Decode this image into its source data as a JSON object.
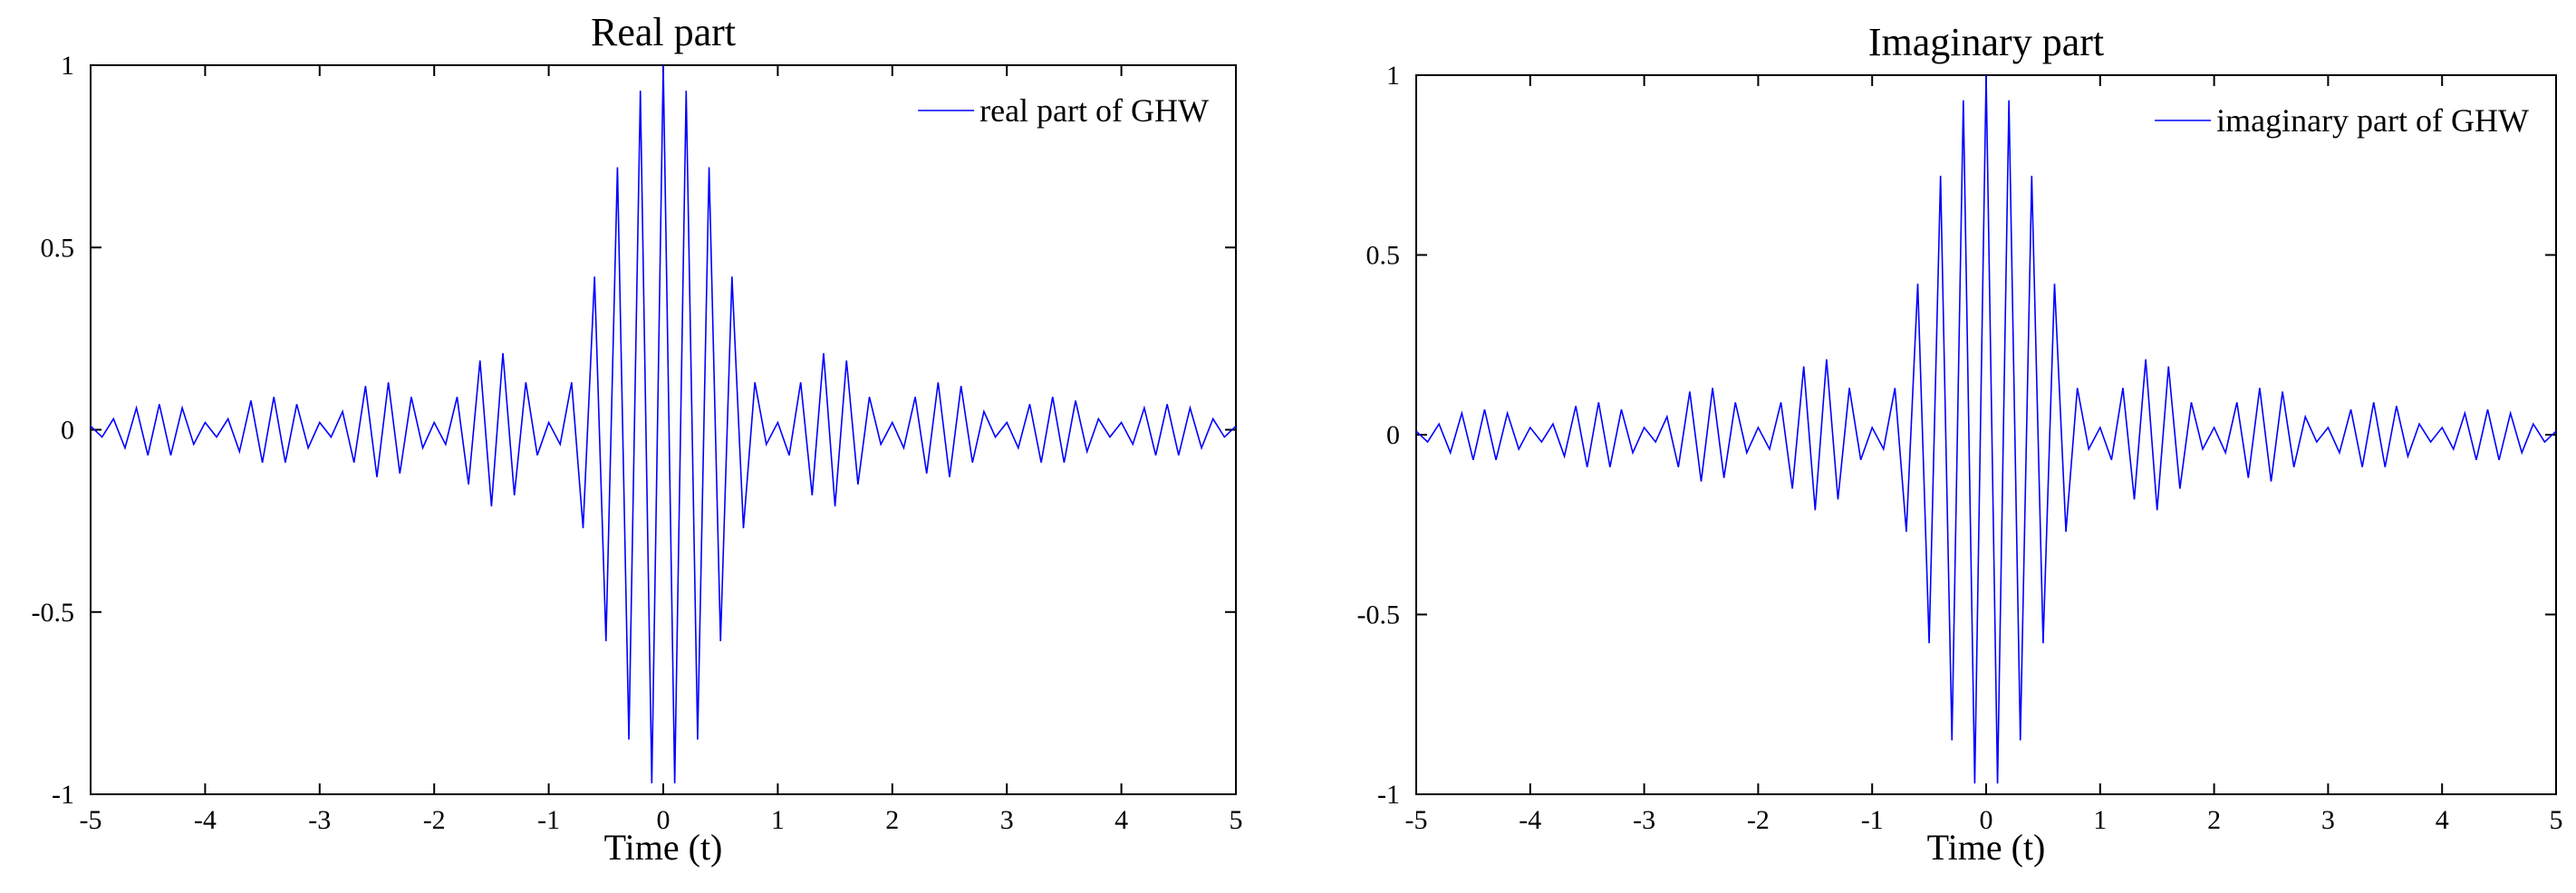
{
  "chart_data": [
    {
      "type": "line",
      "title": "Real part",
      "xlabel": "Time (t)",
      "x": [
        -5,
        -4.9,
        -4.8,
        -4.7,
        -4.6,
        -4.5,
        -4.4,
        -4.3,
        -4.2,
        -4.1,
        -4,
        -3.9,
        -3.8,
        -3.7,
        -3.6,
        -3.5,
        -3.4,
        -3.3,
        -3.2,
        -3.1,
        -3,
        -2.9,
        -2.8,
        -2.7,
        -2.6,
        -2.5,
        -2.4,
        -2.3,
        -2.2,
        -2.1,
        -2,
        -1.9,
        -1.8,
        -1.7,
        -1.6,
        -1.5,
        -1.4,
        -1.3,
        -1.2,
        -1.1,
        -1,
        -0.9,
        -0.8,
        -0.7,
        -0.6,
        -0.5,
        -0.4,
        -0.3,
        -0.2,
        -0.1,
        0,
        0.1,
        0.2,
        0.3,
        0.4,
        0.5,
        0.6,
        0.7,
        0.8,
        0.9,
        1,
        1.1,
        1.2,
        1.3,
        1.4,
        1.5,
        1.6,
        1.7,
        1.8,
        1.9,
        2,
        2.1,
        2.2,
        2.3,
        2.4,
        2.5,
        2.6,
        2.7,
        2.8,
        2.9,
        3,
        3.1,
        3.2,
        3.3,
        3.4,
        3.5,
        3.6,
        3.7,
        3.8,
        3.9,
        4,
        4.1,
        4.2,
        4.3,
        4.4,
        4.5,
        4.6,
        4.7,
        4.8,
        4.9,
        5
      ],
      "series": [
        {
          "name": "real part of GHW",
          "color": "#0000ff",
          "values": [
            0.01,
            -0.02,
            0.03,
            -0.05,
            0.06,
            -0.07,
            0.07,
            -0.07,
            0.06,
            -0.04,
            0.02,
            -0.02,
            0.03,
            -0.06,
            0.08,
            -0.09,
            0.09,
            -0.09,
            0.07,
            -0.05,
            0.02,
            -0.02,
            0.05,
            -0.09,
            0.12,
            -0.13,
            0.13,
            -0.12,
            0.09,
            -0.05,
            0.02,
            -0.04,
            0.09,
            -0.15,
            0.19,
            -0.21,
            0.21,
            -0.18,
            0.13,
            -0.07,
            0.02,
            -0.04,
            0.13,
            -0.27,
            0.42,
            -0.58,
            0.72,
            -0.85,
            0.93,
            -0.97,
            1.0,
            -0.97,
            0.93,
            -0.85,
            0.72,
            -0.58,
            0.42,
            -0.27,
            0.13,
            -0.04,
            0.02,
            -0.07,
            0.13,
            -0.18,
            0.21,
            -0.21,
            0.19,
            -0.15,
            0.09,
            -0.04,
            0.02,
            -0.05,
            0.09,
            -0.12,
            0.13,
            -0.13,
            0.12,
            -0.09,
            0.05,
            -0.02,
            0.02,
            -0.05,
            0.07,
            -0.09,
            0.09,
            -0.09,
            0.08,
            -0.06,
            0.03,
            -0.02,
            0.02,
            -0.04,
            0.06,
            -0.07,
            0.07,
            -0.07,
            0.06,
            -0.05,
            0.03,
            -0.02,
            0.01
          ]
        }
      ],
      "xlim": [
        -5,
        5
      ],
      "xticks": [
        -5,
        -4,
        -3,
        -2,
        -1,
        0,
        1,
        2,
        3,
        4,
        5
      ],
      "ylim": [
        -1,
        1
      ],
      "yticks": [
        -1,
        -0.5,
        0,
        0.5,
        1
      ],
      "legend": "upper right"
    },
    {
      "type": "line",
      "title": "Imaginary part",
      "xlabel": "Time (t)",
      "x": [
        -5,
        -4.9,
        -4.8,
        -4.7,
        -4.6,
        -4.5,
        -4.4,
        -4.3,
        -4.2,
        -4.1,
        -4,
        -3.9,
        -3.8,
        -3.7,
        -3.6,
        -3.5,
        -3.4,
        -3.3,
        -3.2,
        -3.1,
        -3,
        -2.9,
        -2.8,
        -2.7,
        -2.6,
        -2.5,
        -2.4,
        -2.3,
        -2.2,
        -2.1,
        -2,
        -1.9,
        -1.8,
        -1.7,
        -1.6,
        -1.5,
        -1.4,
        -1.3,
        -1.2,
        -1.1,
        -1,
        -0.9,
        -0.8,
        -0.7,
        -0.6,
        -0.5,
        -0.4,
        -0.3,
        -0.2,
        -0.1,
        0,
        0.1,
        0.2,
        0.3,
        0.4,
        0.5,
        0.6,
        0.7,
        0.8,
        0.9,
        1,
        1.1,
        1.2,
        1.3,
        1.4,
        1.5,
        1.6,
        1.7,
        1.8,
        1.9,
        2,
        2.1,
        2.2,
        2.3,
        2.4,
        2.5,
        2.6,
        2.7,
        2.8,
        2.9,
        3,
        3.1,
        3.2,
        3.3,
        3.4,
        3.5,
        3.6,
        3.7,
        3.8,
        3.9,
        4,
        4.1,
        4.2,
        4.3,
        4.4,
        4.5,
        4.6,
        4.7,
        4.8,
        4.9,
        5
      ],
      "series": [
        {
          "name": "imaginary part of GHW",
          "color": "#0000ff",
          "values": [
            0.01,
            -0.02,
            0.03,
            -0.05,
            0.06,
            -0.07,
            0.07,
            -0.07,
            0.06,
            -0.04,
            0.02,
            -0.02,
            0.03,
            -0.06,
            0.08,
            -0.09,
            0.09,
            -0.09,
            0.07,
            -0.05,
            0.02,
            -0.02,
            0.05,
            -0.09,
            0.12,
            -0.13,
            0.13,
            -0.12,
            0.09,
            -0.05,
            0.02,
            -0.04,
            0.09,
            -0.15,
            0.19,
            -0.21,
            0.21,
            -0.18,
            0.13,
            -0.07,
            0.02,
            -0.04,
            0.13,
            -0.27,
            0.42,
            -0.58,
            0.72,
            -0.85,
            0.93,
            -0.97,
            1.0,
            -0.97,
            0.93,
            -0.85,
            0.72,
            -0.58,
            0.42,
            -0.27,
            0.13,
            -0.04,
            0.02,
            -0.07,
            0.13,
            -0.18,
            0.21,
            -0.21,
            0.19,
            -0.15,
            0.09,
            -0.04,
            0.02,
            -0.05,
            0.09,
            -0.12,
            0.13,
            -0.13,
            0.12,
            -0.09,
            0.05,
            -0.02,
            0.02,
            -0.05,
            0.07,
            -0.09,
            0.09,
            -0.09,
            0.08,
            -0.06,
            0.03,
            -0.02,
            0.02,
            -0.04,
            0.06,
            -0.07,
            0.07,
            -0.07,
            0.06,
            -0.05,
            0.03,
            -0.02,
            0.01
          ]
        }
      ],
      "xlim": [
        -5,
        5
      ],
      "xticks": [
        -5,
        -4,
        -3,
        -2,
        -1,
        0,
        1,
        2,
        3,
        4,
        5
      ],
      "ylim": [
        -1,
        1
      ],
      "yticks": [
        -1,
        -0.5,
        0,
        0.5,
        1
      ],
      "legend": "upper right"
    }
  ]
}
